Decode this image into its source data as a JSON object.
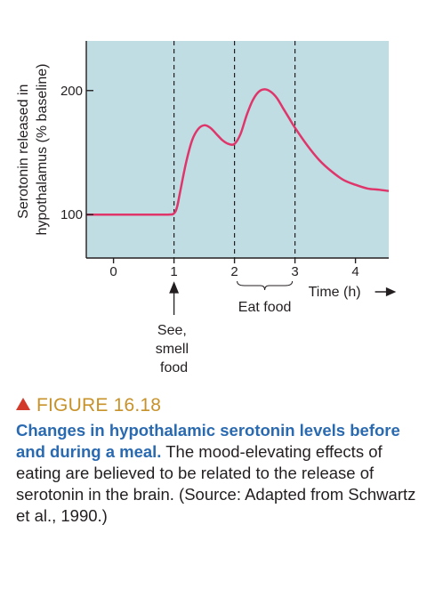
{
  "chart_data": {
    "type": "line",
    "ylabel_lines": [
      "Serotonin released in",
      "hypothalamus (% baseline)"
    ],
    "xlabel": "Time (h)",
    "x_ticks": [
      0,
      1,
      2,
      3,
      4
    ],
    "y_ticks": [
      100,
      200
    ],
    "xlim": [
      -0.45,
      4.55
    ],
    "ylim": [
      65,
      240
    ],
    "grid": false,
    "background_color": "#bfdde3",
    "line_color": "#e0356a",
    "vlines": [
      1,
      2,
      3
    ],
    "series": [
      {
        "x": [
          -0.45,
          0,
          0.5,
          0.9,
          1.0,
          1.05,
          1.1,
          1.2,
          1.3,
          1.4,
          1.5,
          1.6,
          1.7,
          1.8,
          1.9,
          2.0,
          2.1,
          2.2,
          2.3,
          2.4,
          2.5,
          2.6,
          2.7,
          2.8,
          2.9,
          3.0,
          3.2,
          3.4,
          3.6,
          3.8,
          4.0,
          4.2,
          4.4,
          4.55
        ],
        "y": [
          100,
          100,
          100,
          100,
          101,
          106,
          118,
          142,
          160,
          169,
          172,
          170,
          165,
          160,
          157,
          157,
          165,
          180,
          192,
          199,
          201,
          199,
          194,
          186,
          178,
          170,
          156,
          144,
          135,
          128,
          124,
          121,
          120,
          119
        ]
      }
    ],
    "annotations": {
      "see_smell": [
        "See,",
        "smell",
        "food"
      ],
      "eat_food": "Eat food"
    }
  },
  "caption": {
    "figure_label": "FIGURE 16.18",
    "title": "Changes in hypothalamic serotonin levels before and during a meal.",
    "body": " The mood-elevating effects of eating are believed to be related to the release of serotonin in the brain. (Source: Adapted from Schwartz et al., 1990.)"
  }
}
